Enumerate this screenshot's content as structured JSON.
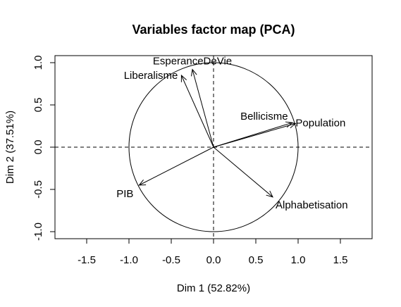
{
  "chart_data": {
    "type": "scatter",
    "subtype": "pca-variables-factor-map",
    "title": "Variables factor map (PCA)",
    "xlabel": "Dim 1 (52.82%)",
    "ylabel": "Dim 2 (37.51%)",
    "xlim": [
      -1.5,
      1.5
    ],
    "ylim": [
      -1.0,
      1.0
    ],
    "x_ticks": [
      -1.5,
      -1.0,
      -0.5,
      0.0,
      0.5,
      1.0,
      1.5
    ],
    "x_tick_labels": [
      "-1.5",
      "-1.0",
      "-0.5",
      "0.0",
      "0.5",
      "1.0",
      "1.5"
    ],
    "y_ticks": [
      -1.0,
      -0.5,
      0.0,
      0.5,
      1.0
    ],
    "y_tick_labels": [
      "-1.0",
      "-0.5",
      "0.0",
      "0.5",
      "1.0"
    ],
    "unit_circle": true,
    "reference_lines": "dashed at x=0 and y=0",
    "grid": false,
    "variables": [
      {
        "name": "EsperanceDeVie",
        "x": -0.25,
        "y": 0.92
      },
      {
        "name": "Liberalisme",
        "x": -0.38,
        "y": 0.85
      },
      {
        "name": "Bellicisme",
        "x": 0.93,
        "y": 0.29
      },
      {
        "name": "Population",
        "x": 0.97,
        "y": 0.28
      },
      {
        "name": "PIB",
        "x": -0.88,
        "y": -0.45
      },
      {
        "name": "Alphabetisation",
        "x": 0.7,
        "y": -0.59
      }
    ]
  }
}
